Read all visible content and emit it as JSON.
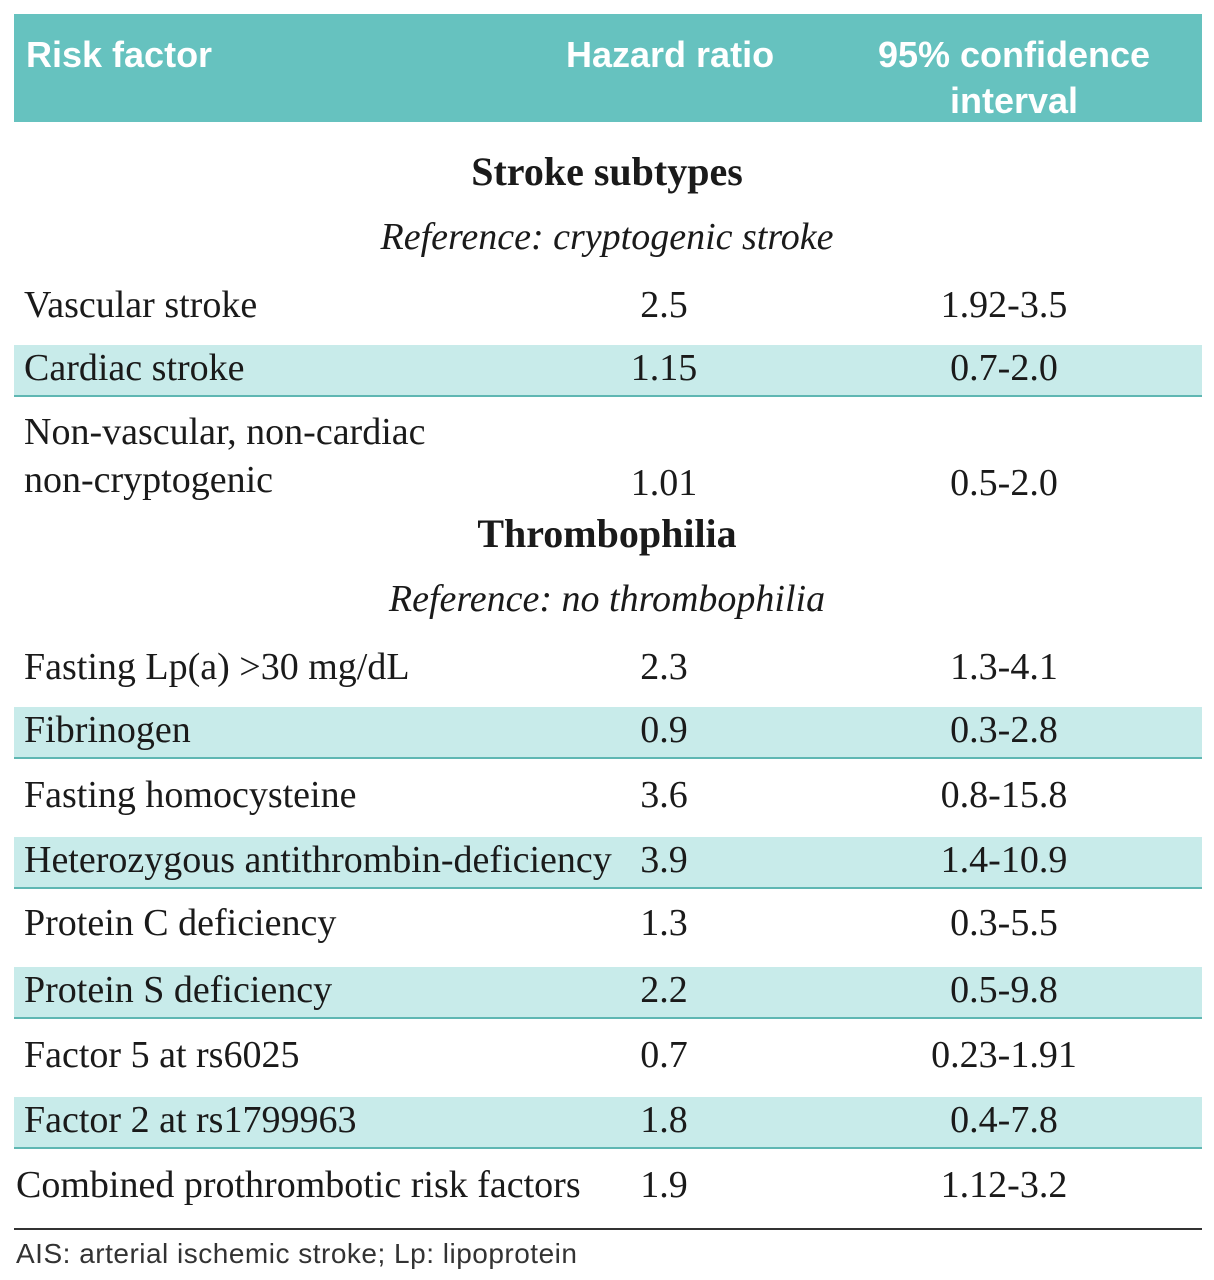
{
  "header": {
    "risk_factor": "Risk factor",
    "hazard_ratio": "Hazard ratio",
    "ci_line1": "95% confidence",
    "ci_line2": "interval"
  },
  "sections": [
    {
      "title": "Stroke subtypes",
      "reference": "Reference: cryptogenic stroke",
      "rows": [
        {
          "label": "Vascular stroke",
          "hr": "2.5",
          "ci": "1.92-3.5",
          "shaded": false
        },
        {
          "label": "Cardiac stroke",
          "hr": "1.15",
          "ci": "0.7-2.0",
          "shaded": true
        },
        {
          "label_line1": "Non-vascular, non-cardiac",
          "label_line2": "non-cryptogenic",
          "hr": "1.01",
          "ci": "0.5-2.0",
          "shaded": false
        }
      ]
    },
    {
      "title": "Thrombophilia",
      "reference": "Reference: no thrombophilia",
      "rows": [
        {
          "label": "Fasting Lp(a) >30 mg/dL",
          "hr": "2.3",
          "ci": "1.3-4.1",
          "shaded": false
        },
        {
          "label": "Fibrinogen",
          "hr": "0.9",
          "ci": "0.3-2.8",
          "shaded": true
        },
        {
          "label": "Fasting homocysteine",
          "hr": "3.6",
          "ci": "0.8-15.8",
          "shaded": false
        },
        {
          "label": "Heterozygous antithrombin-deficiency",
          "hr": "3.9",
          "ci": "1.4-10.9",
          "shaded": true
        },
        {
          "label": "Protein C deficiency",
          "hr": "1.3",
          "ci": "0.3-5.5",
          "shaded": false
        },
        {
          "label": "Protein S deficiency",
          "hr": "2.2",
          "ci": "0.5-9.8",
          "shaded": true
        },
        {
          "label": "Factor 5 at rs6025",
          "hr": "0.7",
          "ci": "0.23-1.91",
          "shaded": false
        },
        {
          "label": "Factor 2 at rs1799963",
          "hr": "1.8",
          "ci": "0.4-7.8",
          "shaded": true
        },
        {
          "label": "Combined prothrombotic risk factors",
          "hr": "1.9",
          "ci": "1.12-3.2",
          "shaded": false
        }
      ]
    }
  ],
  "footnote": "AIS: arterial ischemic stroke; Lp: lipoprotein",
  "colors": {
    "header_bg": "#66c2bf",
    "row_shade": "#c8ebea",
    "row_rule": "#5fb7b3"
  }
}
